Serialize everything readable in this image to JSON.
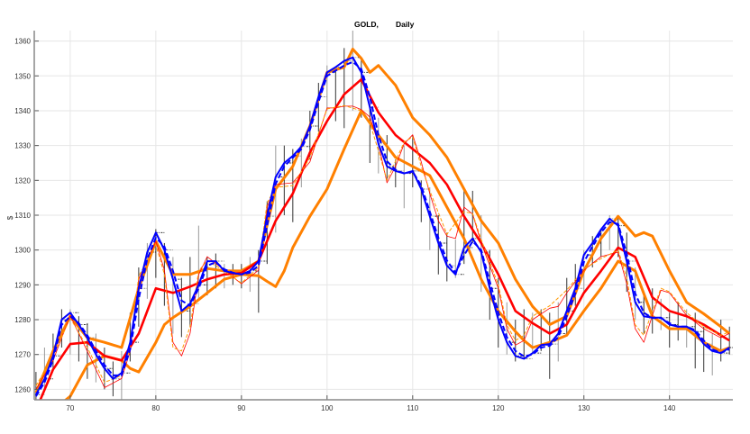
{
  "chart_data": {
    "type": "line",
    "title_left": "GOLD,",
    "title_right": "Daily",
    "xlabel": "",
    "ylabel": "$",
    "xlim": [
      65.8,
      147.4
    ],
    "ylim": [
      1257,
      1363
    ],
    "xticks": [
      70,
      80,
      90,
      100,
      110,
      120,
      130,
      140
    ],
    "yticks": [
      1260,
      1270,
      1280,
      1290,
      1300,
      1310,
      1320,
      1330,
      1340,
      1350,
      1360
    ],
    "grid": true,
    "x_start": 66,
    "ohlc_high_low": [
      [
        1265,
        1256
      ],
      [
        1272,
        1260
      ],
      [
        1276,
        1266
      ],
      [
        1283,
        1272
      ],
      [
        1283,
        1270
      ],
      [
        1281,
        1268
      ],
      [
        1279,
        1263
      ],
      [
        1276,
        1262
      ],
      [
        1272,
        1260
      ],
      [
        1268,
        1258
      ],
      [
        1271,
        1257
      ],
      [
        1282,
        1268
      ],
      [
        1295,
        1278
      ],
      [
        1302,
        1286
      ],
      [
        1306,
        1292
      ],
      [
        1302,
        1284
      ],
      [
        1298,
        1276
      ],
      [
        1292,
        1275
      ],
      [
        1298,
        1278
      ],
      [
        1307,
        1286
      ],
      [
        1298,
        1287
      ],
      [
        1299,
        1289
      ],
      [
        1296,
        1289
      ],
      [
        1296,
        1290
      ],
      [
        1296,
        1289
      ],
      [
        1298,
        1288
      ],
      [
        1300,
        1282
      ],
      [
        1314,
        1296
      ],
      [
        1330,
        1305
      ],
      [
        1330,
        1310
      ],
      [
        1329,
        1308
      ],
      [
        1332,
        1318
      ],
      [
        1340,
        1326
      ],
      [
        1348,
        1334
      ],
      [
        1353,
        1340
      ],
      [
        1352,
        1337
      ],
      [
        1358,
        1335
      ],
      [
        1363,
        1340
      ],
      [
        1355,
        1338
      ],
      [
        1342,
        1325
      ],
      [
        1338,
        1322
      ],
      [
        1333,
        1320
      ],
      [
        1326,
        1318
      ],
      [
        1330,
        1312
      ],
      [
        1333,
        1318
      ],
      [
        1320,
        1308
      ],
      [
        1318,
        1300
      ],
      [
        1310,
        1293
      ],
      [
        1305,
        1291
      ],
      [
        1303,
        1292
      ],
      [
        1317,
        1296
      ],
      [
        1317,
        1302
      ],
      [
        1310,
        1288
      ],
      [
        1300,
        1280
      ],
      [
        1292,
        1272
      ],
      [
        1285,
        1270
      ],
      [
        1280,
        1268
      ],
      [
        1283,
        1269
      ],
      [
        1282,
        1270
      ],
      [
        1283,
        1271
      ],
      [
        1282,
        1263
      ],
      [
        1285,
        1268
      ],
      [
        1292,
        1276
      ],
      [
        1296,
        1284
      ],
      [
        1300,
        1288
      ],
      [
        1304,
        1295
      ],
      [
        1306,
        1298
      ],
      [
        1310,
        1300
      ],
      [
        1310,
        1298
      ],
      [
        1305,
        1288
      ],
      [
        1295,
        1280
      ],
      [
        1288,
        1276
      ],
      [
        1289,
        1276
      ],
      [
        1286,
        1277
      ],
      [
        1282,
        1272
      ],
      [
        1285,
        1274
      ],
      [
        1283,
        1272
      ],
      [
        1282,
        1266
      ],
      [
        1278,
        1265
      ],
      [
        1276,
        1264
      ],
      [
        1280,
        1268
      ],
      [
        1278,
        1270
      ]
    ],
    "series": [
      {
        "color": "#ff8000",
        "width": 3,
        "dash": "",
        "x": [
          69,
          70,
          72,
          74,
          76,
          77,
          78,
          80,
          81,
          82,
          84,
          86,
          88,
          90,
          92,
          93,
          94,
          95,
          96,
          98,
          100,
          102,
          104,
          106,
          108,
          110,
          112,
          114,
          116,
          118,
          120,
          122,
          123,
          124,
          126,
          128,
          130,
          132,
          134,
          136,
          138,
          140,
          142,
          144,
          146,
          147
        ],
        "y": [
          1256,
          1258,
          1267,
          1269.6,
          1268.3,
          1266,
          1265,
          1273.5,
          1278.6,
          1280.6,
          1283.8,
          1287.7,
          1291.6,
          1293,
          1292.6,
          1291,
          1289.5,
          1294,
          1300.7,
          1309.7,
          1317.5,
          1329,
          1340,
          1333,
          1326.6,
          1324,
          1321.4,
          1312.3,
          1303.3,
          1291.6,
          1282.5,
          1276.6,
          1274,
          1272,
          1273.5,
          1275.5,
          1282.5,
          1289,
          1296.8,
          1294,
          1281,
          1277.4,
          1277.4,
          1273.5,
          1271,
          1272
        ]
      },
      {
        "color": "#ff8000",
        "width": 3,
        "dash": "",
        "x": [
          66,
          68,
          70,
          72,
          74,
          76,
          78,
          80,
          82,
          84,
          86,
          88,
          90,
          92,
          94,
          96,
          98,
          100,
          102,
          103,
          104,
          105,
          106,
          108,
          110,
          112,
          114,
          116,
          118,
          120,
          122,
          124,
          126,
          128,
          130,
          132,
          134,
          136,
          137,
          138,
          140,
          142,
          144,
          146,
          147
        ],
        "y": [
          1259,
          1271,
          1281,
          1274.8,
          1273.5,
          1272,
          1289,
          1302.5,
          1293,
          1293,
          1294.7,
          1294,
          1294,
          1296.8,
          1317.5,
          1324,
          1335.6,
          1351,
          1352.5,
          1357.7,
          1355,
          1351,
          1353,
          1347.3,
          1338,
          1333,
          1326.6,
          1317.5,
          1308.4,
          1302,
          1291.6,
          1283.8,
          1278.6,
          1281,
          1294,
          1303.3,
          1309.7,
          1304,
          1305,
          1304,
          1294,
          1285,
          1281.7,
          1278,
          1276
        ]
      },
      {
        "color": "#ff0000",
        "width": 2.6,
        "dash": "",
        "x": [
          66,
          68,
          70,
          72,
          74,
          76,
          78,
          80,
          82,
          84,
          86,
          88,
          90,
          92,
          94,
          96,
          98,
          100,
          102,
          104,
          106,
          108,
          110,
          112,
          114,
          116,
          118,
          120,
          122,
          124,
          126,
          128,
          130,
          132,
          134,
          136,
          138,
          140,
          142,
          144,
          146,
          147
        ],
        "y": [
          1254,
          1265.7,
          1273,
          1273.5,
          1269.6,
          1268.3,
          1276,
          1289,
          1287.7,
          1289.5,
          1291.6,
          1293,
          1293.4,
          1296.8,
          1308.4,
          1316.2,
          1328,
          1337,
          1344.7,
          1349,
          1339.5,
          1333,
          1329,
          1325,
          1318.8,
          1309.7,
          1302,
          1293,
          1282.5,
          1279,
          1276,
          1278.6,
          1287.7,
          1294,
          1300.7,
          1298,
          1286.4,
          1282.5,
          1281,
          1278.6,
          1275.5,
          1274
        ]
      },
      {
        "color": "#ff0000",
        "width": 0.8,
        "dash": "",
        "x": [
          66,
          68,
          70,
          72,
          74,
          76,
          77,
          78,
          80,
          81,
          82,
          83,
          84,
          85,
          86,
          88,
          90,
          92,
          93,
          94,
          96,
          98,
          100,
          101,
          102,
          103,
          104,
          105,
          106,
          107,
          108,
          109,
          110,
          111,
          112,
          113,
          114,
          115,
          116,
          117,
          118,
          120,
          121,
          122,
          123,
          124,
          126,
          127,
          128,
          130,
          132,
          134,
          135,
          136,
          137,
          138,
          139,
          140,
          142,
          144,
          146,
          147
        ],
        "y": [
          1260,
          1268.3,
          1281.2,
          1270.9,
          1260.5,
          1263.1,
          1270.9,
          1291.6,
          1302.5,
          1294.2,
          1273.5,
          1269.6,
          1276.1,
          1292.9,
          1298.1,
          1294.2,
          1290.3,
          1294.2,
          1312.3,
          1318.8,
          1319.3,
          1325.3,
          1340.8,
          1340.8,
          1341.3,
          1341.3,
          1340.3,
          1338.2,
          1330.5,
          1319.3,
          1324,
          1330.5,
          1333.1,
          1325.3,
          1316.2,
          1308.4,
          1304,
          1303.3,
          1312.3,
          1310.3,
          1302,
          1289,
          1277.4,
          1272.7,
          1274,
          1280,
          1283.3,
          1283.8,
          1287.7,
          1294.2,
          1298.1,
          1299.4,
          1290.3,
          1277.4,
          1273.5,
          1281.2,
          1288.5,
          1287.7,
          1281.2,
          1277.4,
          1274.8,
          1276.1
        ]
      },
      {
        "color": "#ff9900",
        "width": 1,
        "dash": "4,2",
        "x": [
          66,
          68,
          70,
          72,
          74,
          76,
          77,
          78,
          80,
          81,
          82,
          83,
          84,
          85,
          86,
          88,
          90,
          92,
          93,
          94,
          96,
          98,
          100,
          102,
          104,
          105,
          106,
          107,
          108,
          109,
          110,
          111,
          112,
          114,
          116,
          117,
          118,
          120,
          121,
          122,
          123,
          124,
          126,
          128,
          130,
          132,
          134,
          135,
          136,
          137,
          138,
          139,
          140,
          142,
          144,
          146,
          147
        ],
        "y": [
          1261,
          1269.5,
          1280.5,
          1272,
          1262,
          1264,
          1272,
          1292.5,
          1301.5,
          1293,
          1272,
          1271,
          1278,
          1294,
          1297,
          1294,
          1290.5,
          1295,
          1313.5,
          1318,
          1318.5,
          1326.5,
          1340.5,
          1341.5,
          1340,
          1336.5,
          1328.5,
          1320,
          1325.5,
          1331,
          1332.5,
          1324,
          1317,
          1304.5,
          1311,
          1310.5,
          1303,
          1290,
          1278.5,
          1274,
          1275.5,
          1281,
          1284,
          1288.5,
          1294.5,
          1297.5,
          1300,
          1292,
          1278.5,
          1275.5,
          1282.5,
          1289,
          1288,
          1282,
          1278,
          1275.5,
          1276.5
        ]
      },
      {
        "color": "#0000ff",
        "width": 2,
        "dash": "6,3",
        "x": [
          66,
          67,
          68,
          69,
          70,
          71,
          72,
          73,
          74,
          75,
          76,
          77,
          78,
          79,
          80,
          81,
          82,
          83,
          84,
          85,
          86,
          87,
          88,
          89,
          90,
          91,
          92,
          93,
          94,
          95,
          96,
          97,
          98,
          99,
          100,
          101,
          102,
          103,
          104,
          105,
          106,
          107,
          108,
          109,
          110,
          111,
          112,
          113,
          114,
          115,
          116,
          117,
          118,
          119,
          120,
          121,
          122,
          123,
          124,
          125,
          126,
          127,
          128,
          129,
          130,
          131,
          132,
          133,
          134,
          135,
          136,
          137,
          138,
          139,
          140,
          141,
          142,
          143,
          144,
          145,
          146,
          147
        ],
        "y": [
          1258,
          1262,
          1268.5,
          1278.5,
          1281,
          1279,
          1275.5,
          1271,
          1267,
          1264,
          1264,
          1271.5,
          1286,
          1297.5,
          1303.5,
          1301,
          1294,
          1285.5,
          1284,
          1289,
          1295.5,
          1296.5,
          1294.5,
          1293.5,
          1293,
          1293.5,
          1295.5,
          1307,
          1319,
          1324,
          1326.5,
          1329,
          1334.5,
          1342.5,
          1350,
          1351.5,
          1353,
          1354,
          1352,
          1344,
          1333,
          1325.5,
          1323,
          1322,
          1322.5,
          1318.5,
          1311,
          1303.5,
          1297,
          1293.5,
          1298.5,
          1302.5,
          1300,
          1291,
          1282,
          1275,
          1271,
          1269.5,
          1270,
          1272,
          1272.5,
          1275,
          1281,
          1287.5,
          1296.5,
          1301,
          1305,
          1308,
          1307.5,
          1299,
          1287.5,
          1282,
          1280.5,
          1280.5,
          1279,
          1278,
          1278,
          1277,
          1274,
          1271.5,
          1270.5,
          1271.5
        ]
      },
      {
        "color": "#0000ff",
        "width": 2,
        "dash": "",
        "x": [
          66,
          67,
          68,
          69,
          70,
          71,
          72,
          73,
          74,
          75,
          76,
          77,
          78,
          79,
          80,
          81,
          82,
          83,
          84,
          85,
          86,
          87,
          88,
          89,
          90,
          91,
          92,
          93,
          94,
          95,
          96,
          97,
          98,
          99,
          100,
          101,
          102,
          103,
          104,
          105,
          106,
          107,
          108,
          109,
          110,
          111,
          112,
          113,
          114,
          115,
          116,
          117,
          118,
          119,
          120,
          121,
          122,
          123,
          124,
          125,
          126,
          127,
          128,
          129,
          130,
          131,
          132,
          133,
          134,
          135,
          136,
          137,
          138,
          139,
          140,
          141,
          142,
          143,
          144,
          145,
          146,
          147
        ],
        "y": [
          1258.5,
          1263,
          1269.6,
          1280,
          1282,
          1278.6,
          1274.8,
          1270,
          1266,
          1263,
          1264.7,
          1273.5,
          1289,
          1299.4,
          1305,
          1300,
          1291.6,
          1282.5,
          1284.6,
          1290,
          1296.8,
          1296.8,
          1294,
          1293.4,
          1293,
          1294,
          1296.8,
          1309.7,
          1321,
          1325,
          1327,
          1329.7,
          1335.6,
          1344,
          1351,
          1352.5,
          1354.3,
          1355.3,
          1351,
          1341,
          1330.5,
          1324,
          1322.7,
          1322,
          1322.7,
          1317.5,
          1309.7,
          1302,
          1295.5,
          1293,
          1300.7,
          1303.3,
          1299.4,
          1289,
          1280,
          1273.5,
          1269.6,
          1268.8,
          1270.4,
          1272.7,
          1273,
          1276,
          1282.5,
          1289,
          1298.6,
          1302,
          1305.9,
          1309,
          1307,
          1296.8,
          1285,
          1281,
          1280.6,
          1280.6,
          1278.6,
          1278,
          1278,
          1276.6,
          1273,
          1271,
          1270.4,
          1272
        ]
      }
    ]
  }
}
